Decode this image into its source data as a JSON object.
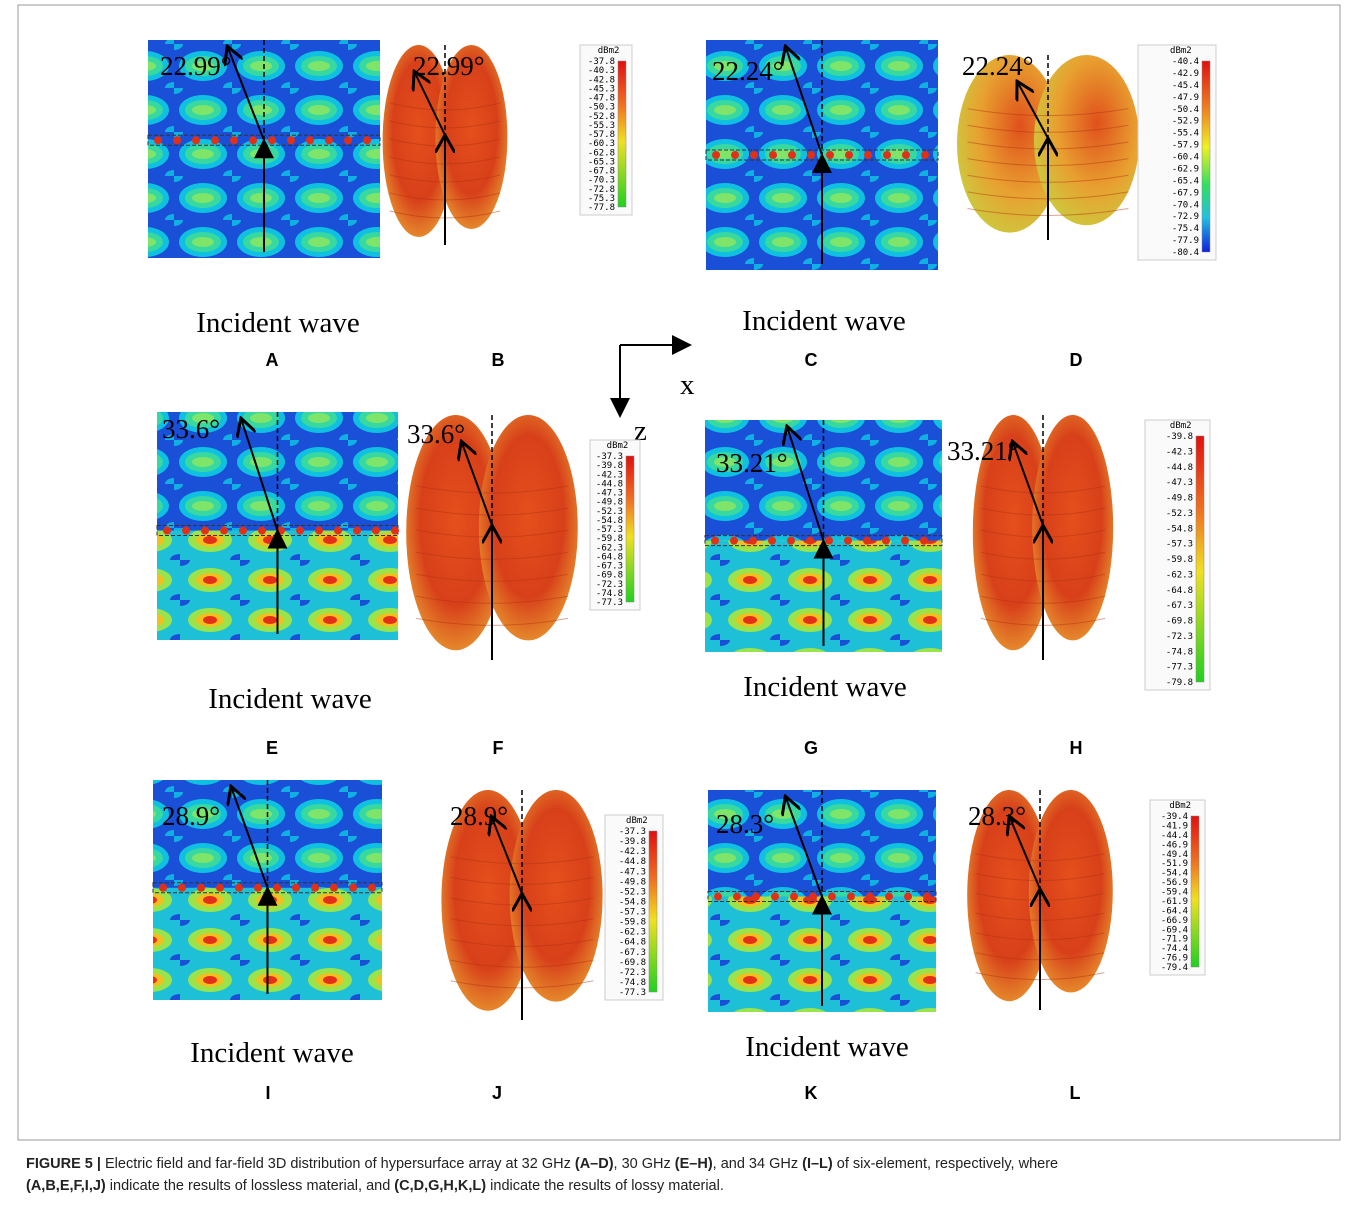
{
  "panels": [
    {
      "label": "A",
      "angle": "22.99°",
      "caption": "Incident wave"
    },
    {
      "label": "B",
      "angle": "22.99°",
      "colorbar": {
        "unit": "dBm2",
        "ticks": [
          "-37.8",
          "-40.3",
          "-42.8",
          "-45.3",
          "-47.8",
          "-50.3",
          "-52.8",
          "-55.3",
          "-57.8",
          "-60.3",
          "-62.8",
          "-65.3",
          "-67.8",
          "-70.3",
          "-72.8",
          "-75.3",
          "-77.8"
        ]
      }
    },
    {
      "label": "C",
      "angle": "22.24°",
      "caption": "Incident wave"
    },
    {
      "label": "D",
      "angle": "22.24°",
      "colorbar": {
        "unit": "dBm2",
        "ticks": [
          "-40.4",
          "-42.9",
          "-45.4",
          "-47.9",
          "-50.4",
          "-52.9",
          "-55.4",
          "-57.9",
          "-60.4",
          "-62.9",
          "-65.4",
          "-67.9",
          "-70.4",
          "-72.9",
          "-75.4",
          "-77.9",
          "-80.4"
        ]
      }
    },
    {
      "label": "E",
      "angle": "33.6°",
      "caption": "Incident wave"
    },
    {
      "label": "F",
      "angle": "33.6°",
      "colorbar": {
        "unit": "dBm2",
        "ticks": [
          "-37.3",
          "-39.8",
          "-42.3",
          "-44.8",
          "-47.3",
          "-49.8",
          "-52.3",
          "-54.8",
          "-57.3",
          "-59.8",
          "-62.3",
          "-64.8",
          "-67.3",
          "-69.8",
          "-72.3",
          "-74.8",
          "-77.3"
        ]
      }
    },
    {
      "label": "G",
      "angle": "33.21°",
      "caption": "Incident wave"
    },
    {
      "label": "H",
      "angle": "33.21°",
      "colorbar": {
        "unit": "dBm2",
        "ticks": [
          "-39.8",
          "-42.3",
          "-44.8",
          "-47.3",
          "-49.8",
          "-52.3",
          "-54.8",
          "-57.3",
          "-59.8",
          "-62.3",
          "-64.8",
          "-67.3",
          "-69.8",
          "-72.3",
          "-74.8",
          "-77.3",
          "-79.8"
        ]
      }
    },
    {
      "label": "I",
      "angle": "28.9°",
      "caption": "Incident wave"
    },
    {
      "label": "J",
      "angle": "28.9°",
      "colorbar": {
        "unit": "dBm2",
        "ticks": [
          "-37.3",
          "-39.8",
          "-42.3",
          "-44.8",
          "-47.3",
          "-49.8",
          "-52.3",
          "-54.8",
          "-57.3",
          "-59.8",
          "-62.3",
          "-64.8",
          "-67.3",
          "-69.8",
          "-72.3",
          "-74.8",
          "-77.3"
        ]
      }
    },
    {
      "label": "K",
      "angle": "28.3°",
      "caption": "Incident wave"
    },
    {
      "label": "L",
      "angle": "28.3°",
      "colorbar": {
        "unit": "dBm2",
        "ticks": [
          "-39.4",
          "-41.9",
          "-44.4",
          "-46.9",
          "-49.4",
          "-51.9",
          "-54.4",
          "-56.9",
          "-59.4",
          "-61.9",
          "-64.4",
          "-66.9",
          "-69.4",
          "-71.9",
          "-74.4",
          "-76.9",
          "-79.4"
        ]
      }
    }
  ],
  "axes": {
    "x": "x",
    "z": "z"
  },
  "caption": {
    "segments": [
      "FIGURE 5 |",
      " Electric field and far-field 3D distribution of hypersurface array at 32 GHz ",
      "(A–D)",
      ", 30 GHz ",
      "(E–H)",
      ", and 34 GHz ",
      "(I–L)",
      " of six-element, respectively, where",
      "(A,B,E,F,I,J)",
      " indicate the results of lossless material, and ",
      "(C,D,G,H,K,L)",
      " indicate the results of lossy material."
    ]
  }
}
